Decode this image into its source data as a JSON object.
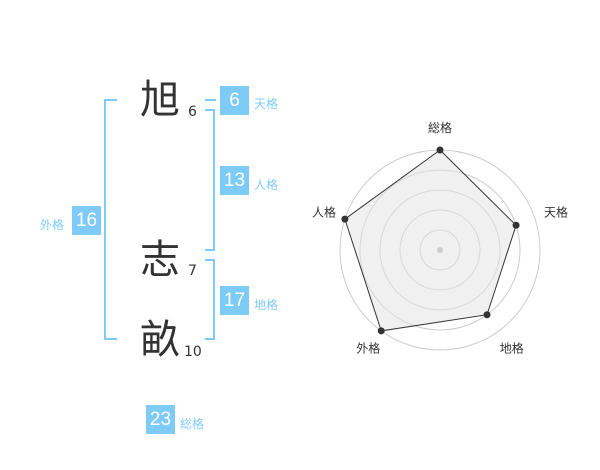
{
  "name": {
    "chars": [
      {
        "char": "旭",
        "strokes": "6"
      },
      {
        "char": "志",
        "strokes": "7"
      },
      {
        "char": "畝",
        "strokes": "10"
      }
    ]
  },
  "fortunes": {
    "tenkaku": {
      "label": "天格",
      "value": "6"
    },
    "jinkaku": {
      "label": "人格",
      "value": "13"
    },
    "chikaku": {
      "label": "地格",
      "value": "17"
    },
    "gaikaku": {
      "label": "外格",
      "value": "16"
    },
    "soukaku": {
      "label": "総格",
      "value": "23"
    }
  },
  "colors": {
    "accent": "#7fcbf8",
    "text": "#333333",
    "grid": "#cccccc",
    "fill": "#f0f0f0"
  },
  "chart_data": {
    "type": "radar",
    "categories": [
      "総格",
      "天格",
      "地格",
      "外格",
      "人格"
    ],
    "values": [
      5,
      4,
      4,
      5,
      5
    ],
    "range": [
      0,
      5
    ],
    "rings": 5
  }
}
